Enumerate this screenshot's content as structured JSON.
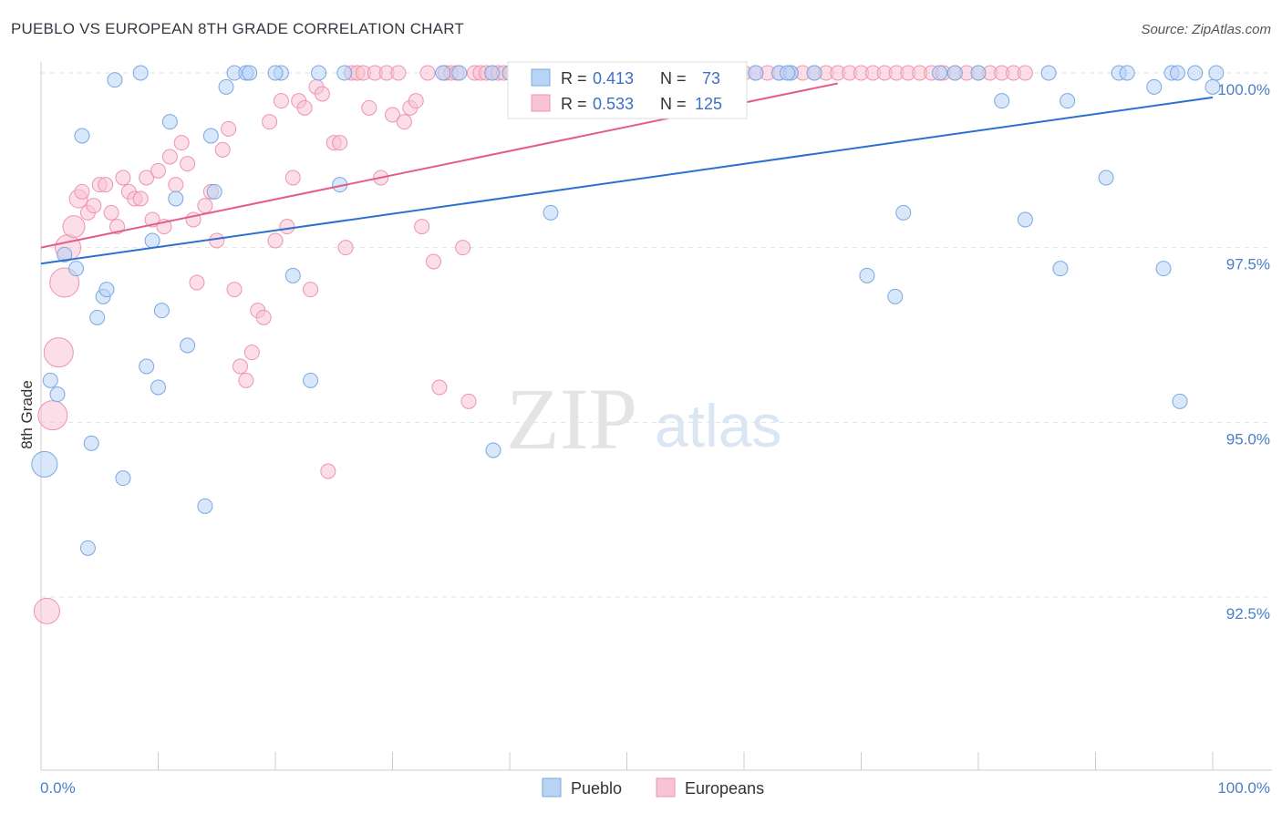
{
  "title": "PUEBLO VS EUROPEAN 8TH GRADE CORRELATION CHART",
  "source": "Source: ZipAtlas.com",
  "watermark": {
    "zip": "ZIP",
    "atlas": "atlas"
  },
  "legend_box": {
    "rows": [
      {
        "r_label": "R =",
        "r_value": "0.413",
        "n_label": "N =",
        "n_value": "73"
      },
      {
        "r_label": "R =",
        "r_value": "0.533",
        "n_label": "N =",
        "n_value": "125"
      }
    ]
  },
  "bottom_legend": [
    "Pueblo",
    "Europeans"
  ],
  "colors": {
    "pueblo_fill": "#b8d4f5",
    "pueblo_stroke": "#7aa8e0",
    "pueblo_line": "#2d6fd1",
    "euro_fill": "#f8c3d3",
    "euro_stroke": "#ee94b0",
    "euro_line": "#e35d8c",
    "grid": "#e2e2e2",
    "axis_text": "#4a7fc8"
  },
  "chart_data": {
    "type": "scatter",
    "title": "PUEBLO VS EUROPEAN 8TH GRADE CORRELATION CHART",
    "xlabel": "",
    "ylabel": "8th Grade",
    "xlim": [
      0,
      100
    ],
    "ylim": [
      90.0,
      100.5
    ],
    "x_tick_labels": [
      "0.0%",
      "100.0%"
    ],
    "y_ticks": [
      92.5,
      95.0,
      97.5,
      100.0
    ],
    "y_tick_labels": [
      "92.5%",
      "95.0%",
      "97.5%",
      "100.0%"
    ],
    "grid": true,
    "legend_position": "top-center",
    "series": [
      {
        "name": "Pueblo",
        "R": 0.413,
        "N": 73,
        "trend": {
          "x": [
            0,
            100
          ],
          "y": [
            97.27,
            99.65
          ]
        },
        "points": [
          [
            0.3,
            94.4,
            14
          ],
          [
            0.8,
            95.6,
            8
          ],
          [
            1.4,
            95.4,
            8
          ],
          [
            2.0,
            97.4,
            8
          ],
          [
            3.0,
            97.2,
            8
          ],
          [
            3.5,
            99.1,
            8
          ],
          [
            4.0,
            93.2,
            8
          ],
          [
            4.3,
            94.7,
            8
          ],
          [
            4.8,
            96.5,
            8
          ],
          [
            5.3,
            96.8,
            8
          ],
          [
            5.6,
            96.9,
            8
          ],
          [
            7.0,
            94.2,
            8
          ],
          [
            8.5,
            100.0,
            8
          ],
          [
            6.3,
            99.9,
            8
          ],
          [
            9.0,
            95.8,
            8
          ],
          [
            9.5,
            97.6,
            8
          ],
          [
            10.0,
            95.5,
            8
          ],
          [
            10.3,
            96.6,
            8
          ],
          [
            11.0,
            99.3,
            8
          ],
          [
            11.5,
            98.2,
            8
          ],
          [
            12.5,
            96.1,
            8
          ],
          [
            14.0,
            93.8,
            8
          ],
          [
            14.5,
            99.1,
            8
          ],
          [
            14.8,
            98.3,
            8
          ],
          [
            15.8,
            99.8,
            8
          ],
          [
            16.5,
            100.0,
            8
          ],
          [
            17.5,
            100.0,
            8
          ],
          [
            17.8,
            100.0,
            8
          ],
          [
            20.5,
            100.0,
            8
          ],
          [
            20.0,
            100.0,
            8
          ],
          [
            21.5,
            97.1,
            8
          ],
          [
            23.0,
            95.6,
            8
          ],
          [
            23.7,
            100.0,
            8
          ],
          [
            25.5,
            98.4,
            8
          ],
          [
            25.9,
            100.0,
            8
          ],
          [
            34.3,
            100.0,
            8
          ],
          [
            35.7,
            100.0,
            8
          ],
          [
            38.5,
            100.0,
            8
          ],
          [
            40.0,
            100.0,
            8
          ],
          [
            43.5,
            98.0,
            8
          ],
          [
            38.6,
            94.6,
            8
          ],
          [
            42.5,
            100.0,
            8
          ],
          [
            47.5,
            100.0,
            8
          ],
          [
            50.5,
            100.0,
            8
          ],
          [
            56.2,
            100.0,
            8
          ],
          [
            58.0,
            100.0,
            8
          ],
          [
            61.0,
            100.0,
            8
          ],
          [
            63.0,
            100.0,
            8
          ],
          [
            64.0,
            100.0,
            8
          ],
          [
            63.7,
            100.0,
            8
          ],
          [
            66.0,
            100.0,
            8
          ],
          [
            70.5,
            97.1,
            8
          ],
          [
            72.9,
            96.8,
            8
          ],
          [
            73.6,
            98.0,
            8
          ],
          [
            76.7,
            100.0,
            8
          ],
          [
            78.0,
            100.0,
            8
          ],
          [
            80.0,
            100.0,
            8
          ],
          [
            82.0,
            99.6,
            8
          ],
          [
            86.0,
            100.0,
            8
          ],
          [
            84.0,
            97.9,
            8
          ],
          [
            87.6,
            99.6,
            8
          ],
          [
            90.9,
            98.5,
            8
          ],
          [
            92.0,
            100.0,
            8
          ],
          [
            92.7,
            100.0,
            8
          ],
          [
            95.0,
            99.8,
            8
          ],
          [
            96.5,
            100.0,
            8
          ],
          [
            87.0,
            97.2,
            8
          ],
          [
            97.0,
            100.0,
            8
          ],
          [
            97.2,
            95.3,
            8
          ],
          [
            98.5,
            100.0,
            8
          ],
          [
            100.3,
            100.0,
            8
          ],
          [
            95.8,
            97.2,
            8
          ],
          [
            100.0,
            99.8,
            8
          ]
        ]
      },
      {
        "name": "Europeans",
        "R": 0.533,
        "N": 125,
        "trend": {
          "x": [
            0,
            68
          ],
          "y": [
            97.5,
            99.85
          ]
        },
        "points": [
          [
            0.5,
            92.3,
            14
          ],
          [
            1.0,
            95.1,
            16
          ],
          [
            1.5,
            96.0,
            16
          ],
          [
            2.0,
            97.0,
            16
          ],
          [
            2.3,
            97.5,
            14
          ],
          [
            2.8,
            97.8,
            12
          ],
          [
            3.2,
            98.2,
            10
          ],
          [
            3.5,
            98.3,
            8
          ],
          [
            4.0,
            98.0,
            8
          ],
          [
            4.5,
            98.1,
            8
          ],
          [
            5.0,
            98.4,
            8
          ],
          [
            5.5,
            98.4,
            8
          ],
          [
            6.0,
            98.0,
            8
          ],
          [
            6.5,
            97.8,
            8
          ],
          [
            7.0,
            98.5,
            8
          ],
          [
            7.5,
            98.3,
            8
          ],
          [
            8.0,
            98.2,
            8
          ],
          [
            8.5,
            98.2,
            8
          ],
          [
            9.0,
            98.5,
            8
          ],
          [
            9.5,
            97.9,
            8
          ],
          [
            10.0,
            98.6,
            8
          ],
          [
            10.5,
            97.8,
            8
          ],
          [
            11.0,
            98.8,
            8
          ],
          [
            11.5,
            98.4,
            8
          ],
          [
            12.0,
            99.0,
            8
          ],
          [
            12.5,
            98.7,
            8
          ],
          [
            13.0,
            97.9,
            8
          ],
          [
            13.3,
            97.0,
            8
          ],
          [
            14.0,
            98.1,
            8
          ],
          [
            14.5,
            98.3,
            8
          ],
          [
            15.0,
            97.6,
            8
          ],
          [
            15.5,
            98.9,
            8
          ],
          [
            16.0,
            99.2,
            8
          ],
          [
            16.5,
            96.9,
            8
          ],
          [
            17.0,
            95.8,
            8
          ],
          [
            17.5,
            95.6,
            8
          ],
          [
            18.0,
            96.0,
            8
          ],
          [
            18.5,
            96.6,
            8
          ],
          [
            19.0,
            96.5,
            8
          ],
          [
            19.5,
            99.3,
            8
          ],
          [
            20.0,
            97.6,
            8
          ],
          [
            20.5,
            99.6,
            8
          ],
          [
            21.0,
            97.8,
            8
          ],
          [
            21.5,
            98.5,
            8
          ],
          [
            22.0,
            99.6,
            8
          ],
          [
            22.5,
            99.5,
            8
          ],
          [
            23.0,
            96.9,
            8
          ],
          [
            23.5,
            99.8,
            8
          ],
          [
            24.0,
            99.7,
            8
          ],
          [
            24.5,
            94.3,
            8
          ],
          [
            25.0,
            99.0,
            8
          ],
          [
            25.5,
            99.0,
            8
          ],
          [
            26.0,
            97.5,
            8
          ],
          [
            26.5,
            100.0,
            8
          ],
          [
            27.0,
            100.0,
            8
          ],
          [
            27.5,
            100.0,
            8
          ],
          [
            28.0,
            99.5,
            8
          ],
          [
            28.5,
            100.0,
            8
          ],
          [
            29.0,
            98.5,
            8
          ],
          [
            29.5,
            100.0,
            8
          ],
          [
            30.0,
            99.4,
            8
          ],
          [
            30.5,
            100.0,
            8
          ],
          [
            31.0,
            99.3,
            8
          ],
          [
            31.5,
            99.5,
            8
          ],
          [
            32.0,
            99.6,
            8
          ],
          [
            32.5,
            97.8,
            8
          ],
          [
            33.0,
            100.0,
            8
          ],
          [
            33.5,
            97.3,
            8
          ],
          [
            34.0,
            95.5,
            8
          ],
          [
            34.5,
            100.0,
            8
          ],
          [
            35.0,
            100.0,
            8
          ],
          [
            35.5,
            100.0,
            8
          ],
          [
            36.0,
            97.5,
            8
          ],
          [
            36.5,
            95.3,
            8
          ],
          [
            37.0,
            100.0,
            8
          ],
          [
            37.5,
            100.0,
            8
          ],
          [
            38.0,
            100.0,
            8
          ],
          [
            38.5,
            100.0,
            8
          ],
          [
            39.0,
            100.0,
            8
          ],
          [
            39.5,
            100.0,
            8
          ],
          [
            40.0,
            100.0,
            8
          ],
          [
            41.0,
            100.0,
            8
          ],
          [
            42.0,
            100.0,
            8
          ],
          [
            43.0,
            100.0,
            8
          ],
          [
            44.0,
            100.0,
            8
          ],
          [
            45.0,
            100.0,
            8
          ],
          [
            46.0,
            100.0,
            8
          ],
          [
            47.0,
            100.0,
            8
          ],
          [
            48.0,
            100.0,
            8
          ],
          [
            49.0,
            100.0,
            8
          ],
          [
            50.0,
            100.0,
            8
          ],
          [
            51.0,
            100.0,
            8
          ],
          [
            52.0,
            100.0,
            8
          ],
          [
            53.0,
            100.0,
            8
          ],
          [
            54.0,
            100.0,
            8
          ],
          [
            55.0,
            100.0,
            8
          ],
          [
            56.0,
            100.0,
            8
          ],
          [
            57.0,
            100.0,
            8
          ],
          [
            58.0,
            100.0,
            8
          ],
          [
            59.0,
            100.0,
            8
          ],
          [
            60.0,
            100.0,
            8
          ],
          [
            61.0,
            100.0,
            8
          ],
          [
            62.0,
            100.0,
            8
          ],
          [
            63.0,
            100.0,
            8
          ],
          [
            64.0,
            100.0,
            8
          ],
          [
            65.0,
            100.0,
            8
          ],
          [
            66.0,
            100.0,
            8
          ],
          [
            67.0,
            100.0,
            8
          ],
          [
            68.0,
            100.0,
            8
          ],
          [
            69.0,
            100.0,
            8
          ],
          [
            70.0,
            100.0,
            8
          ],
          [
            71.0,
            100.0,
            8
          ],
          [
            72.0,
            100.0,
            8
          ],
          [
            73.0,
            100.0,
            8
          ],
          [
            74.0,
            100.0,
            8
          ],
          [
            75.0,
            100.0,
            8
          ],
          [
            76.0,
            100.0,
            8
          ],
          [
            77.0,
            100.0,
            8
          ],
          [
            78.0,
            100.0,
            8
          ],
          [
            79.0,
            100.0,
            8
          ],
          [
            80.0,
            100.0,
            8
          ],
          [
            81.0,
            100.0,
            8
          ],
          [
            82.0,
            100.0,
            8
          ],
          [
            83.0,
            100.0,
            8
          ],
          [
            84.0,
            100.0,
            8
          ]
        ]
      }
    ]
  }
}
